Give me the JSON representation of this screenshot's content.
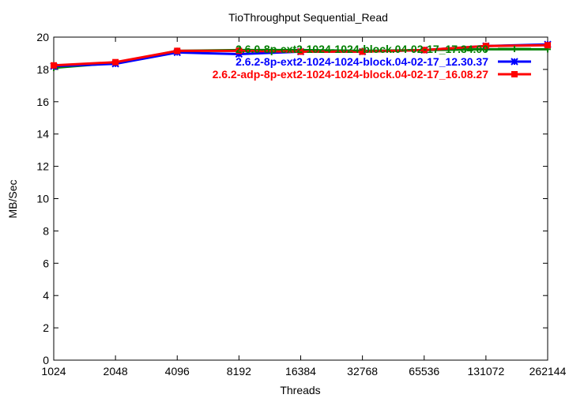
{
  "chart_data": {
    "type": "line",
    "title": "TioThroughput Sequential_Read",
    "xlabel": "Threads",
    "ylabel": "MB/Sec",
    "x_scale": "log2",
    "categories": [
      "1024",
      "2048",
      "4096",
      "8192",
      "16384",
      "32768",
      "65536",
      "131072",
      "262144"
    ],
    "ylim": [
      0,
      20
    ],
    "yticks": [
      0,
      2,
      4,
      6,
      8,
      10,
      12,
      14,
      16,
      18,
      20
    ],
    "grid": false,
    "legend_position": "top-right",
    "series": [
      {
        "name": "2.6.0-8p-ext2-1024-1024-block.04-02-17_17.34.00",
        "color": "#008000",
        "marker": "plus",
        "values": [
          18.1,
          18.4,
          19.15,
          19.2,
          19.2,
          19.15,
          19.2,
          19.25,
          19.25
        ]
      },
      {
        "name": "2.6.2-8p-ext2-1024-1024-block.04-02-17_12.30.37",
        "color": "#0000ff",
        "marker": "star",
        "values": [
          18.2,
          18.35,
          19.05,
          18.95,
          19.1,
          19.1,
          19.2,
          19.45,
          19.55
        ]
      },
      {
        "name": "2.6.2-adp-8p-ext2-1024-1024-block.04-02-17_16.08.27",
        "color": "#ff0000",
        "marker": "square",
        "values": [
          18.25,
          18.45,
          19.15,
          19.15,
          19.1,
          19.1,
          19.2,
          19.45,
          19.5
        ]
      }
    ]
  }
}
